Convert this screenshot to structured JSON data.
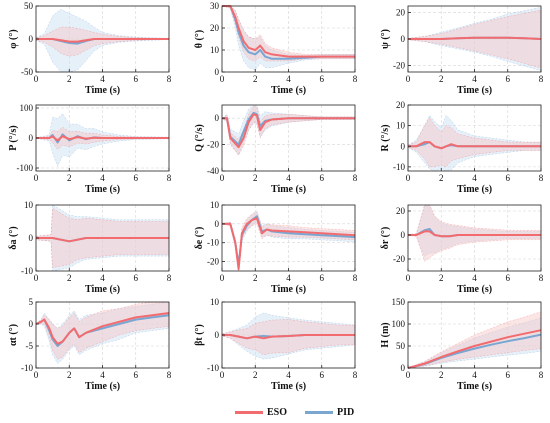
{
  "colors": {
    "eso": "#f26b6f",
    "pid": "#7aa6d2",
    "eso_band": "#f7c6c6",
    "pid_band": "#c7ddf1"
  },
  "legend": {
    "items": [
      {
        "label": "ESO",
        "color": "#f26b6f"
      },
      {
        "label": "PID",
        "color": "#7aa6d2"
      }
    ],
    "placement": "bottom-center"
  },
  "chart_data": [
    {
      "type": "line",
      "ylabel": "φ (°)",
      "xlabel": "Time (s)",
      "xlim": [
        0,
        8
      ],
      "ylim": [
        -50,
        50
      ],
      "xticks": [
        0,
        2,
        4,
        6,
        8
      ],
      "yticks": [
        -50,
        0,
        50
      ],
      "grid": true,
      "x": [
        0,
        0.5,
        1,
        1.5,
        2,
        2.5,
        3,
        3.5,
        4,
        5,
        6,
        7,
        8
      ],
      "series": [
        {
          "name": "ESO",
          "values": [
            0,
            0,
            0,
            -2,
            -4,
            -4,
            -2,
            0,
            0,
            0,
            0,
            0,
            0
          ],
          "band": [
            2,
            5,
            12,
            20,
            22,
            20,
            15,
            10,
            7,
            4,
            2,
            1,
            1
          ]
        },
        {
          "name": "PID",
          "values": [
            0,
            0,
            0,
            -3,
            -6,
            -7,
            -3,
            0,
            0,
            0,
            0,
            0,
            0
          ],
          "band": [
            2,
            8,
            35,
            48,
            45,
            40,
            30,
            18,
            10,
            5,
            3,
            2,
            1
          ]
        }
      ]
    },
    {
      "type": "line",
      "ylabel": "θ (°)",
      "xlabel": "Time (s)",
      "xlim": [
        0,
        8
      ],
      "ylim": [
        0,
        30
      ],
      "xticks": [
        0,
        2,
        4,
        6,
        8
      ],
      "yticks": [
        0,
        10,
        20,
        30
      ],
      "grid": true,
      "x": [
        0,
        0.5,
        0.8,
        1,
        1.3,
        1.6,
        2,
        2.3,
        2.6,
        3,
        4,
        5,
        6,
        7,
        8
      ],
      "series": [
        {
          "name": "ESO",
          "values": [
            30,
            30,
            25,
            20,
            14,
            11,
            10,
            12,
            9,
            8,
            7,
            7,
            7,
            7,
            7
          ],
          "band": [
            0,
            1,
            3,
            4,
            5,
            5,
            5,
            5,
            4,
            3,
            2,
            1,
            1,
            1,
            1
          ]
        },
        {
          "name": "PID",
          "values": [
            30,
            30,
            24,
            18,
            12,
            9,
            8,
            10,
            7,
            6,
            6,
            6.5,
            7,
            7,
            7
          ],
          "band": [
            0,
            1,
            4,
            6,
            7,
            7,
            7,
            6,
            5,
            4,
            2,
            1,
            1,
            1,
            1
          ]
        }
      ]
    },
    {
      "type": "line",
      "ylabel": "ψ (°)",
      "xlabel": "Time (s)",
      "xlim": [
        0,
        8
      ],
      "ylim": [
        -25,
        25
      ],
      "xticks": [
        0,
        2,
        4,
        6,
        8
      ],
      "yticks": [
        -20,
        0,
        20
      ],
      "grid": true,
      "x": [
        0,
        1,
        2,
        3,
        4,
        5,
        6,
        7,
        8
      ],
      "series": [
        {
          "name": "ESO",
          "values": [
            0,
            0,
            0,
            0.5,
            1,
            1,
            1,
            0.5,
            0
          ],
          "band": [
            0.5,
            2,
            4,
            7,
            10,
            13,
            16,
            19,
            22
          ]
        },
        {
          "name": "PID",
          "values": [
            0,
            0,
            0,
            0.5,
            1,
            1,
            1,
            0.5,
            0
          ],
          "band": [
            0.5,
            2,
            5,
            8,
            11,
            14,
            18,
            21,
            24
          ]
        }
      ]
    },
    {
      "type": "line",
      "ylabel": "P (°/s)",
      "xlabel": "Time (s)",
      "xlim": [
        0,
        8
      ],
      "ylim": [
        -110,
        110
      ],
      "xticks": [
        0,
        2,
        4,
        6,
        8
      ],
      "yticks": [
        -100,
        0,
        100
      ],
      "grid": true,
      "x": [
        0,
        0.8,
        1,
        1.3,
        1.6,
        2,
        2.5,
        3,
        3.5,
        4,
        5,
        6,
        8
      ],
      "series": [
        {
          "name": "ESO",
          "values": [
            0,
            0,
            5,
            -8,
            6,
            -4,
            3,
            -2,
            1,
            0,
            0,
            0,
            0
          ],
          "band": [
            1,
            5,
            20,
            30,
            30,
            25,
            20,
            18,
            15,
            10,
            5,
            3,
            2
          ]
        },
        {
          "name": "PID",
          "values": [
            0,
            0,
            10,
            -15,
            12,
            -8,
            6,
            -4,
            2,
            0,
            0,
            0,
            0
          ],
          "band": [
            1,
            10,
            60,
            80,
            70,
            55,
            40,
            35,
            30,
            20,
            10,
            5,
            3
          ]
        }
      ]
    },
    {
      "type": "line",
      "ylabel": "Q (°/s)",
      "xlabel": "Time (s)",
      "xlim": [
        0,
        8
      ],
      "ylim": [
        -40,
        10
      ],
      "xticks": [
        0,
        2,
        4,
        6,
        8
      ],
      "yticks": [
        -40,
        -20,
        0
      ],
      "grid": true,
      "x": [
        0,
        0.3,
        0.5,
        1,
        1.3,
        1.6,
        1.9,
        2.1,
        2.3,
        2.6,
        3,
        4,
        5,
        6,
        7,
        8
      ],
      "series": [
        {
          "name": "ESO",
          "values": [
            0,
            0,
            -15,
            -22,
            -15,
            -3,
            3,
            2,
            -9,
            -3,
            -1,
            0,
            0,
            0,
            0,
            0
          ],
          "band": [
            0,
            2,
            4,
            6,
            6,
            6,
            6,
            6,
            6,
            5,
            4,
            3,
            2,
            1,
            1,
            1
          ]
        },
        {
          "name": "PID",
          "values": [
            0,
            0,
            -14,
            -20,
            -10,
            -1,
            4,
            3,
            -6,
            -2,
            -1,
            0,
            0,
            0,
            0,
            0
          ],
          "band": [
            0,
            3,
            6,
            8,
            8,
            8,
            8,
            8,
            8,
            7,
            5,
            3,
            2,
            1,
            1,
            1
          ]
        }
      ]
    },
    {
      "type": "line",
      "ylabel": "R (°/s)",
      "xlabel": "Time (s)",
      "xlim": [
        0,
        8
      ],
      "ylim": [
        -12,
        20
      ],
      "xticks": [
        0,
        2,
        4,
        6,
        8
      ],
      "yticks": [
        -10,
        0,
        10,
        20
      ],
      "grid": true,
      "x": [
        0,
        0.5,
        1,
        1.3,
        1.6,
        2,
        2.3,
        2.6,
        3,
        4,
        5,
        6,
        7,
        8
      ],
      "series": [
        {
          "name": "ESO",
          "values": [
            0,
            0,
            2,
            2,
            0,
            -1,
            0,
            1,
            0,
            0,
            0,
            0,
            0,
            0
          ],
          "band": [
            0.5,
            2,
            8,
            12,
            10,
            8,
            10,
            8,
            6,
            4,
            3,
            2,
            2,
            2
          ]
        },
        {
          "name": "PID",
          "values": [
            0,
            0,
            1,
            2,
            0,
            -1,
            0,
            0.5,
            0,
            0,
            0,
            0,
            0,
            0
          ],
          "band": [
            0.5,
            3,
            9,
            13,
            12,
            10,
            15,
            12,
            8,
            5,
            4,
            3,
            2,
            2
          ]
        }
      ]
    },
    {
      "type": "line",
      "ylabel": "δa (°)",
      "xlabel": "Time (s)",
      "xlim": [
        0,
        8
      ],
      "ylim": [
        -10,
        10
      ],
      "xticks": [
        0,
        2,
        4,
        6,
        8
      ],
      "yticks": [
        -10,
        0,
        10
      ],
      "grid": true,
      "x": [
        0,
        0.9,
        1,
        1.5,
        2,
        2.5,
        3,
        4,
        5,
        6,
        8
      ],
      "series": [
        {
          "name": "ESO",
          "values": [
            0,
            0,
            0,
            -0.5,
            -1,
            -0.5,
            0,
            0,
            0,
            0,
            0
          ],
          "band": [
            0.5,
            1,
            9,
            8,
            7,
            6,
            6,
            5.5,
            5,
            5,
            5
          ]
        },
        {
          "name": "PID",
          "values": [
            0,
            0,
            0,
            -0.5,
            -1,
            -0.5,
            0,
            0,
            0,
            0,
            0
          ],
          "band": [
            0.5,
            1,
            10,
            9,
            8,
            7,
            6.5,
            6,
            5.5,
            5.5,
            5.5
          ]
        }
      ]
    },
    {
      "type": "line",
      "ylabel": "δe (°)",
      "xlabel": "Time (s)",
      "xlim": [
        0,
        8
      ],
      "ylim": [
        -25,
        10
      ],
      "xticks": [
        0,
        2,
        4,
        6,
        8
      ],
      "yticks": [
        -20,
        -10,
        0,
        10
      ],
      "grid": true,
      "x": [
        0,
        0.5,
        0.8,
        1,
        1.2,
        1.5,
        1.8,
        2.1,
        2.4,
        2.7,
        3,
        4,
        5,
        6,
        7,
        8
      ],
      "series": [
        {
          "name": "ESO",
          "values": [
            0,
            0,
            -10,
            -24,
            -5,
            0,
            2,
            3,
            -5,
            -3,
            -3.5,
            -4,
            -4.5,
            -5,
            -5.5,
            -6
          ],
          "band": [
            0,
            1,
            2,
            3,
            3,
            3,
            3,
            3,
            3,
            3,
            3,
            3,
            2.5,
            2.5,
            2.5,
            2.5
          ]
        },
        {
          "name": "PID",
          "values": [
            0,
            0,
            -10,
            -22,
            -6,
            -1,
            2,
            4,
            -4,
            -3,
            -4,
            -5,
            -5.5,
            -6,
            -6.5,
            -7
          ],
          "band": [
            0,
            1,
            2,
            3,
            3,
            3,
            3,
            3,
            3,
            3,
            3,
            3,
            2.5,
            2.5,
            2.5,
            2.5
          ]
        }
      ]
    },
    {
      "type": "line",
      "ylabel": "δr (°)",
      "xlabel": "Time (s)",
      "xlim": [
        0,
        8
      ],
      "ylim": [
        -30,
        25
      ],
      "xticks": [
        0,
        2,
        4,
        6,
        8
      ],
      "yticks": [
        -20,
        0,
        20
      ],
      "grid": true,
      "x": [
        0,
        0.5,
        1,
        1.3,
        1.6,
        2,
        2.5,
        3,
        4,
        5,
        6,
        8
      ],
      "series": [
        {
          "name": "ESO",
          "values": [
            0,
            0,
            3,
            3,
            0,
            -1,
            -1,
            0,
            0,
            0,
            0,
            0
          ],
          "band": [
            0.5,
            1,
            25,
            22,
            16,
            12,
            10,
            8,
            6,
            5,
            4,
            4
          ]
        },
        {
          "name": "PID",
          "values": [
            0,
            0,
            4,
            5,
            0,
            -1,
            -1,
            0,
            0,
            0,
            0,
            0
          ],
          "band": [
            0.5,
            1,
            22,
            20,
            15,
            11,
            9,
            7,
            5,
            4,
            3,
            3
          ]
        }
      ]
    },
    {
      "type": "line",
      "ylabel": "αt (°)",
      "xlabel": "Time (s)",
      "xlim": [
        0,
        8
      ],
      "ylim": [
        -10,
        5
      ],
      "xticks": [
        0,
        2,
        4,
        6,
        8
      ],
      "yticks": [
        -10,
        -5,
        0,
        5
      ],
      "grid": true,
      "x": [
        0,
        0.3,
        0.5,
        0.8,
        1,
        1.3,
        1.6,
        2,
        2.3,
        2.6,
        3,
        4,
        5,
        6,
        7,
        8
      ],
      "series": [
        {
          "name": "ESO",
          "values": [
            0,
            0.5,
            1,
            -1,
            -3,
            -4.5,
            -4,
            -2,
            -1,
            -3,
            -2,
            -0.5,
            0.5,
            1.5,
            2,
            2.5
          ],
          "band": [
            0,
            0.5,
            1,
            2,
            3,
            3.5,
            3.5,
            3.5,
            3.5,
            3.5,
            3.5,
            3.5,
            3,
            3,
            3,
            3
          ]
        },
        {
          "name": "PID",
          "values": [
            0,
            0.5,
            1,
            -1.5,
            -3.5,
            -5,
            -4,
            -2,
            -1,
            -3,
            -2,
            -1,
            0,
            1,
            1.5,
            2
          ],
          "band": [
            0,
            0.5,
            1.5,
            2.5,
            3.5,
            4,
            4,
            4,
            4,
            4,
            4,
            3.5,
            3.5,
            3,
            3,
            3
          ]
        }
      ]
    },
    {
      "type": "line",
      "ylabel": "βt (°)",
      "xlabel": "Time (s)",
      "xlim": [
        0,
        8
      ],
      "ylim": [
        -10,
        10
      ],
      "xticks": [
        0,
        2,
        4,
        6,
        8
      ],
      "yticks": [
        -10,
        0,
        10
      ],
      "grid": true,
      "x": [
        0,
        0.5,
        1,
        1.5,
        2,
        2.5,
        3,
        4,
        5,
        6,
        7,
        8
      ],
      "series": [
        {
          "name": "ESO",
          "values": [
            0,
            0,
            -0.5,
            -1,
            -0.5,
            -1,
            -0.5,
            -0.3,
            0,
            0,
            0,
            0
          ],
          "band": [
            0.3,
            1,
            2,
            3,
            4,
            5,
            5,
            5,
            4,
            3.5,
            3,
            3
          ]
        },
        {
          "name": "PID",
          "values": [
            0,
            0,
            -0.5,
            -1,
            -0.5,
            -0.3,
            -0.5,
            -0.3,
            0,
            0,
            0,
            0
          ],
          "band": [
            0.3,
            1,
            2.5,
            4,
            6,
            7,
            6.5,
            5.5,
            4.5,
            4,
            3.5,
            3
          ]
        }
      ]
    },
    {
      "type": "line",
      "ylabel": "H (m)",
      "xlabel": "Time (s)",
      "xlim": [
        0,
        8
      ],
      "ylim": [
        0,
        150
      ],
      "xticks": [
        0,
        2,
        4,
        6,
        8
      ],
      "yticks": [
        0,
        50,
        100,
        150
      ],
      "grid": true,
      "x": [
        0,
        1,
        2,
        3,
        4,
        5,
        6,
        7,
        8
      ],
      "series": [
        {
          "name": "ESO",
          "values": [
            0,
            10,
            25,
            38,
            50,
            60,
            70,
            78,
            86
          ],
          "band": [
            0,
            5,
            12,
            18,
            25,
            30,
            35,
            38,
            42
          ]
        },
        {
          "name": "PID",
          "values": [
            0,
            9,
            23,
            34,
            44,
            53,
            61,
            68,
            76
          ],
          "band": [
            0,
            5,
            12,
            18,
            24,
            28,
            32,
            35,
            38
          ]
        }
      ]
    }
  ]
}
